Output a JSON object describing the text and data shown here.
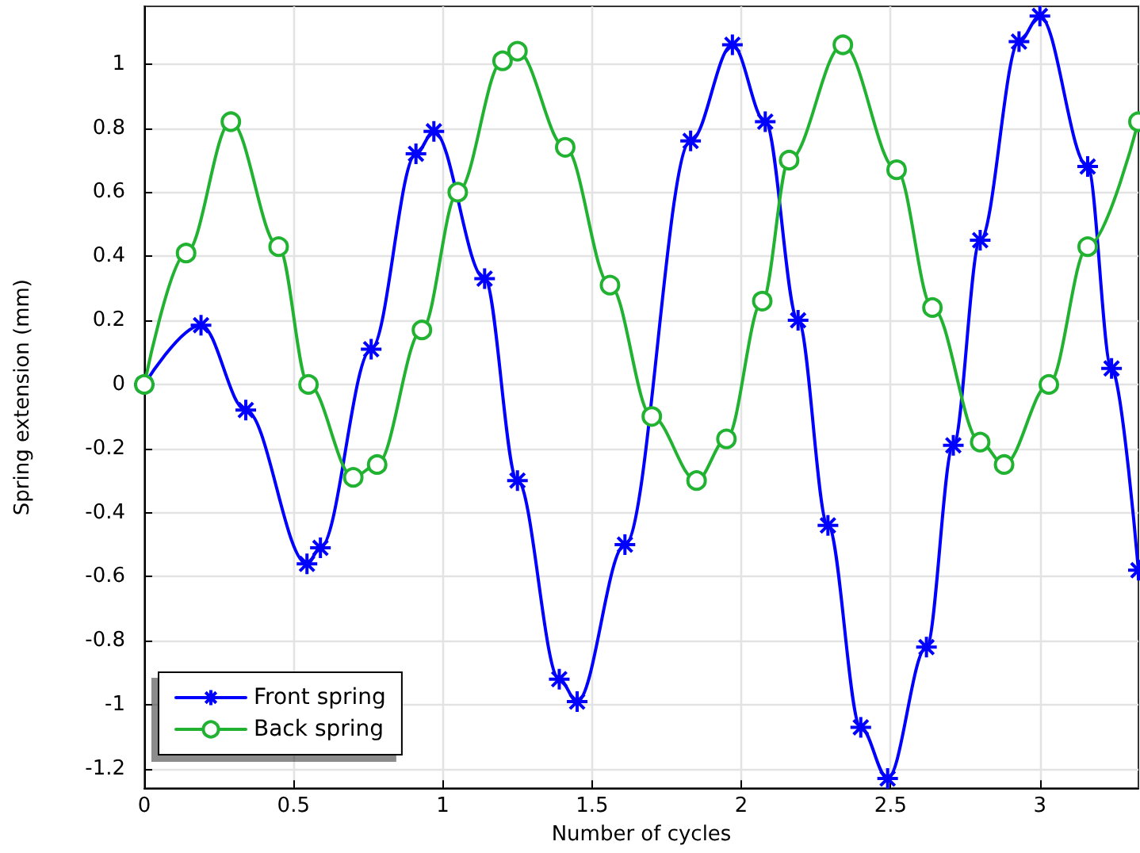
{
  "chart_data": {
    "type": "line",
    "xlabel": "Number of cycles",
    "ylabel": "Spring extension (mm)",
    "xlim": [
      0,
      3.33
    ],
    "xticks": [
      0,
      0.5,
      1,
      1.5,
      2,
      2.5,
      3
    ],
    "ylim": [
      -1.26,
      1.18
    ],
    "yticks": [
      -1.2,
      -1,
      -0.8,
      -0.6,
      -0.4,
      -0.2,
      0,
      0.2,
      0.4,
      0.6,
      0.8,
      1
    ],
    "grid": true,
    "legend": "bottom left",
    "line_style": "solid",
    "series": [
      {
        "name": "Front spring",
        "color": "#0000ff",
        "marker": "cross",
        "x": [
          0,
          0.19,
          0.34,
          0.545,
          0.59,
          0.76,
          0.91,
          0.97,
          1.14,
          1.25,
          1.39,
          1.45,
          1.61,
          1.83,
          1.97,
          2.08,
          2.19,
          2.29,
          2.4,
          2.49,
          2.62,
          2.71,
          2.8,
          2.93,
          3.0,
          3.16,
          3.24,
          3.33
        ],
        "values": [
          0,
          0.185,
          -0.08,
          -0.56,
          -0.51,
          0.11,
          0.72,
          0.79,
          0.33,
          -0.3,
          -0.92,
          -0.99,
          -0.5,
          0.76,
          1.06,
          0.82,
          0.2,
          -0.44,
          -1.07,
          -1.23,
          -0.82,
          -0.19,
          0.45,
          1.07,
          1.15,
          0.68,
          0.05,
          -0.58
        ]
      },
      {
        "name": "Back spring",
        "color": "#22b232",
        "marker": "circle",
        "x": [
          0,
          0.14,
          0.29,
          0.45,
          0.55,
          0.7,
          0.78,
          0.93,
          1.05,
          1.2,
          1.25,
          1.41,
          1.56,
          1.7,
          1.85,
          1.95,
          2.07,
          2.16,
          2.34,
          2.52,
          2.64,
          2.8,
          2.88,
          3.03,
          3.16,
          3.33
        ],
        "values": [
          0,
          0.41,
          0.82,
          0.43,
          0,
          -0.29,
          -0.25,
          0.17,
          0.6,
          1.01,
          1.04,
          0.74,
          0.31,
          -0.1,
          -0.3,
          -0.17,
          0.26,
          0.7,
          1.06,
          0.67,
          0.24,
          -0.18,
          -0.25,
          0,
          0.43,
          0.82
        ]
      }
    ]
  }
}
